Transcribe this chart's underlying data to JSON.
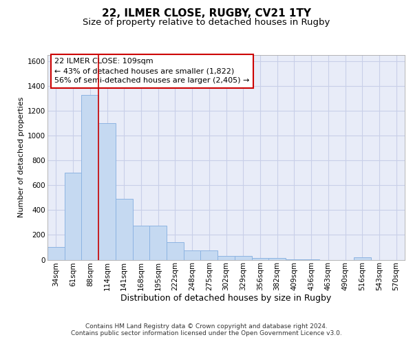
{
  "title1": "22, ILMER CLOSE, RUGBY, CV21 1TY",
  "title2": "Size of property relative to detached houses in Rugby",
  "xlabel": "Distribution of detached houses by size in Rugby",
  "ylabel": "Number of detached properties",
  "categories": [
    "34sqm",
    "61sqm",
    "88sqm",
    "114sqm",
    "141sqm",
    "168sqm",
    "195sqm",
    "222sqm",
    "248sqm",
    "275sqm",
    "302sqm",
    "329sqm",
    "356sqm",
    "382sqm",
    "409sqm",
    "436sqm",
    "463sqm",
    "490sqm",
    "516sqm",
    "543sqm",
    "570sqm"
  ],
  "values": [
    100,
    700,
    1330,
    1100,
    490,
    275,
    275,
    140,
    75,
    75,
    30,
    30,
    15,
    15,
    5,
    5,
    0,
    0,
    18,
    0,
    0
  ],
  "bar_color": "#c5d9f1",
  "bar_edge_color": "#8db4e2",
  "vline_color": "#cc0000",
  "vline_x": 2.5,
  "annotation_text": "22 ILMER CLOSE: 109sqm\n← 43% of detached houses are smaller (1,822)\n56% of semi-detached houses are larger (2,405) →",
  "annotation_box_facecolor": "white",
  "annotation_box_edgecolor": "#cc0000",
  "ylim": [
    0,
    1650
  ],
  "yticks": [
    0,
    200,
    400,
    600,
    800,
    1000,
    1200,
    1400,
    1600
  ],
  "bg_color": "#e8ecf8",
  "grid_color": "#c8cfe8",
  "title1_fontsize": 11,
  "title2_fontsize": 9.5,
  "xlabel_fontsize": 9,
  "ylabel_fontsize": 8,
  "tick_fontsize": 7.5,
  "annotation_fontsize": 8,
  "footer_fontsize": 6.5,
  "footer1": "Contains HM Land Registry data © Crown copyright and database right 2024.",
  "footer2": "Contains public sector information licensed under the Open Government Licence v3.0."
}
